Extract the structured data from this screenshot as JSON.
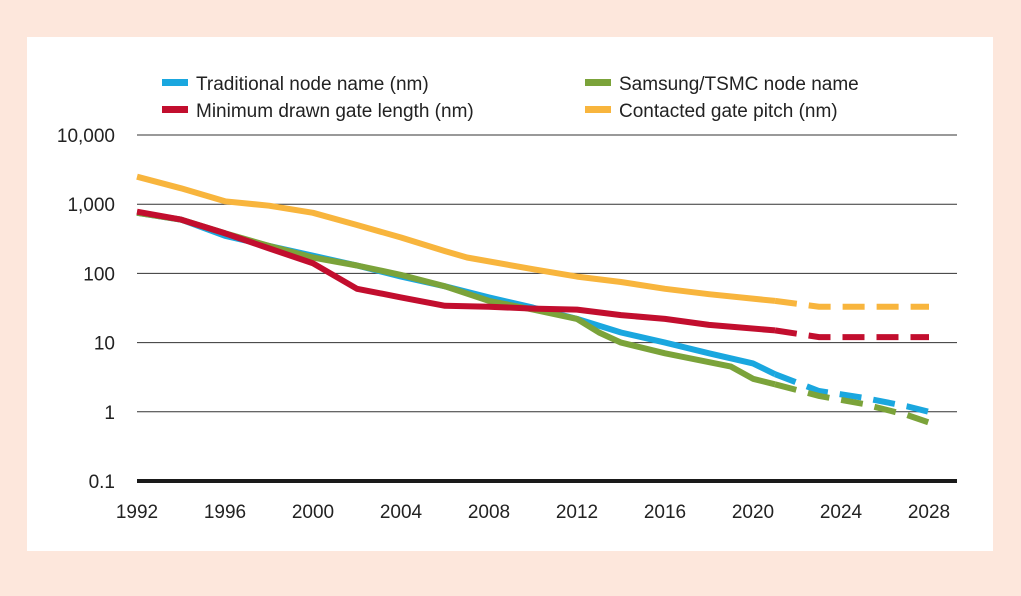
{
  "chart_data": {
    "type": "line",
    "title": "",
    "xlabel": "",
    "ylabel": "",
    "y_scale": "log",
    "xlim": [
      1992,
      2028
    ],
    "ylim": [
      0.1,
      10000
    ],
    "x_ticks": [
      "1992",
      "1996",
      "2000",
      "2004",
      "2008",
      "2012",
      "2016",
      "2020",
      "2024",
      "2028"
    ],
    "y_ticks": [
      {
        "value": 10000,
        "label": "10,000"
      },
      {
        "value": 1000,
        "label": "1,000"
      },
      {
        "value": 100,
        "label": "100"
      },
      {
        "value": 10,
        "label": "10"
      },
      {
        "value": 1,
        "label": "1"
      },
      {
        "value": 0.1,
        "label": "0.1"
      }
    ],
    "grid": "horizontal",
    "legend_position": "top",
    "projection_style": "dashed",
    "series": [
      {
        "name": "Traditional node name (nm)",
        "color": "#1aa7df",
        "solid": [
          [
            1992,
            750
          ],
          [
            1994,
            600
          ],
          [
            1996,
            350
          ],
          [
            1998,
            250
          ],
          [
            2000,
            180
          ],
          [
            2002,
            130
          ],
          [
            2004,
            90
          ],
          [
            2006,
            65
          ],
          [
            2008,
            45
          ],
          [
            2010,
            32
          ],
          [
            2012,
            22
          ],
          [
            2014,
            14
          ],
          [
            2016,
            10
          ],
          [
            2018,
            7
          ],
          [
            2020,
            5
          ],
          [
            2021,
            3.5
          ]
        ],
        "projected": [
          [
            2021,
            3.5
          ],
          [
            2023,
            2
          ],
          [
            2025,
            1.6
          ],
          [
            2027,
            1.2
          ],
          [
            2028,
            1
          ]
        ]
      },
      {
        "name": "Samsung/TSMC node name",
        "color": "#7ba33a",
        "solid": [
          [
            1992,
            750
          ],
          [
            1994,
            600
          ],
          [
            1996,
            380
          ],
          [
            1998,
            250
          ],
          [
            2000,
            170
          ],
          [
            2002,
            130
          ],
          [
            2004,
            95
          ],
          [
            2006,
            65
          ],
          [
            2008,
            40
          ],
          [
            2010,
            30
          ],
          [
            2012,
            22
          ],
          [
            2013,
            14
          ],
          [
            2014,
            10
          ],
          [
            2016,
            7
          ],
          [
            2019,
            4.5
          ],
          [
            2020,
            3
          ],
          [
            2021,
            2.5
          ]
        ],
        "projected": [
          [
            2021,
            2.5
          ],
          [
            2023,
            1.7
          ],
          [
            2025,
            1.3
          ],
          [
            2027,
            0.9
          ],
          [
            2028,
            0.7
          ]
        ]
      },
      {
        "name": "Minimum drawn gate length (nm)",
        "color": "#c20e2e",
        "solid": [
          [
            1992,
            780
          ],
          [
            1994,
            600
          ],
          [
            1996,
            380
          ],
          [
            1998,
            230
          ],
          [
            2000,
            140
          ],
          [
            2002,
            60
          ],
          [
            2004,
            45
          ],
          [
            2006,
            34
          ],
          [
            2008,
            33
          ],
          [
            2010,
            31
          ],
          [
            2012,
            30
          ],
          [
            2014,
            25
          ],
          [
            2016,
            22
          ],
          [
            2018,
            18
          ],
          [
            2021,
            15
          ]
        ],
        "projected": [
          [
            2021,
            15
          ],
          [
            2023,
            12
          ],
          [
            2025,
            12
          ],
          [
            2028,
            12
          ]
        ]
      },
      {
        "name": "Contacted gate pitch (nm)",
        "color": "#f8b53d",
        "solid": [
          [
            1992,
            2500
          ],
          [
            1994,
            1700
          ],
          [
            1996,
            1100
          ],
          [
            1998,
            950
          ],
          [
            2000,
            750
          ],
          [
            2002,
            500
          ],
          [
            2004,
            330
          ],
          [
            2006,
            210
          ],
          [
            2007,
            170
          ],
          [
            2010,
            115
          ],
          [
            2012,
            90
          ],
          [
            2014,
            75
          ],
          [
            2016,
            60
          ],
          [
            2018,
            50
          ],
          [
            2021,
            40
          ]
        ],
        "projected": [
          [
            2021,
            40
          ],
          [
            2023,
            33
          ],
          [
            2025,
            33
          ],
          [
            2028,
            33
          ]
        ]
      }
    ],
    "legend_columns": [
      [
        "Traditional node name (nm)",
        "Minimum drawn gate length (nm)"
      ],
      [
        "Samsung/TSMC node name",
        "Contacted gate pitch (nm)"
      ]
    ]
  }
}
